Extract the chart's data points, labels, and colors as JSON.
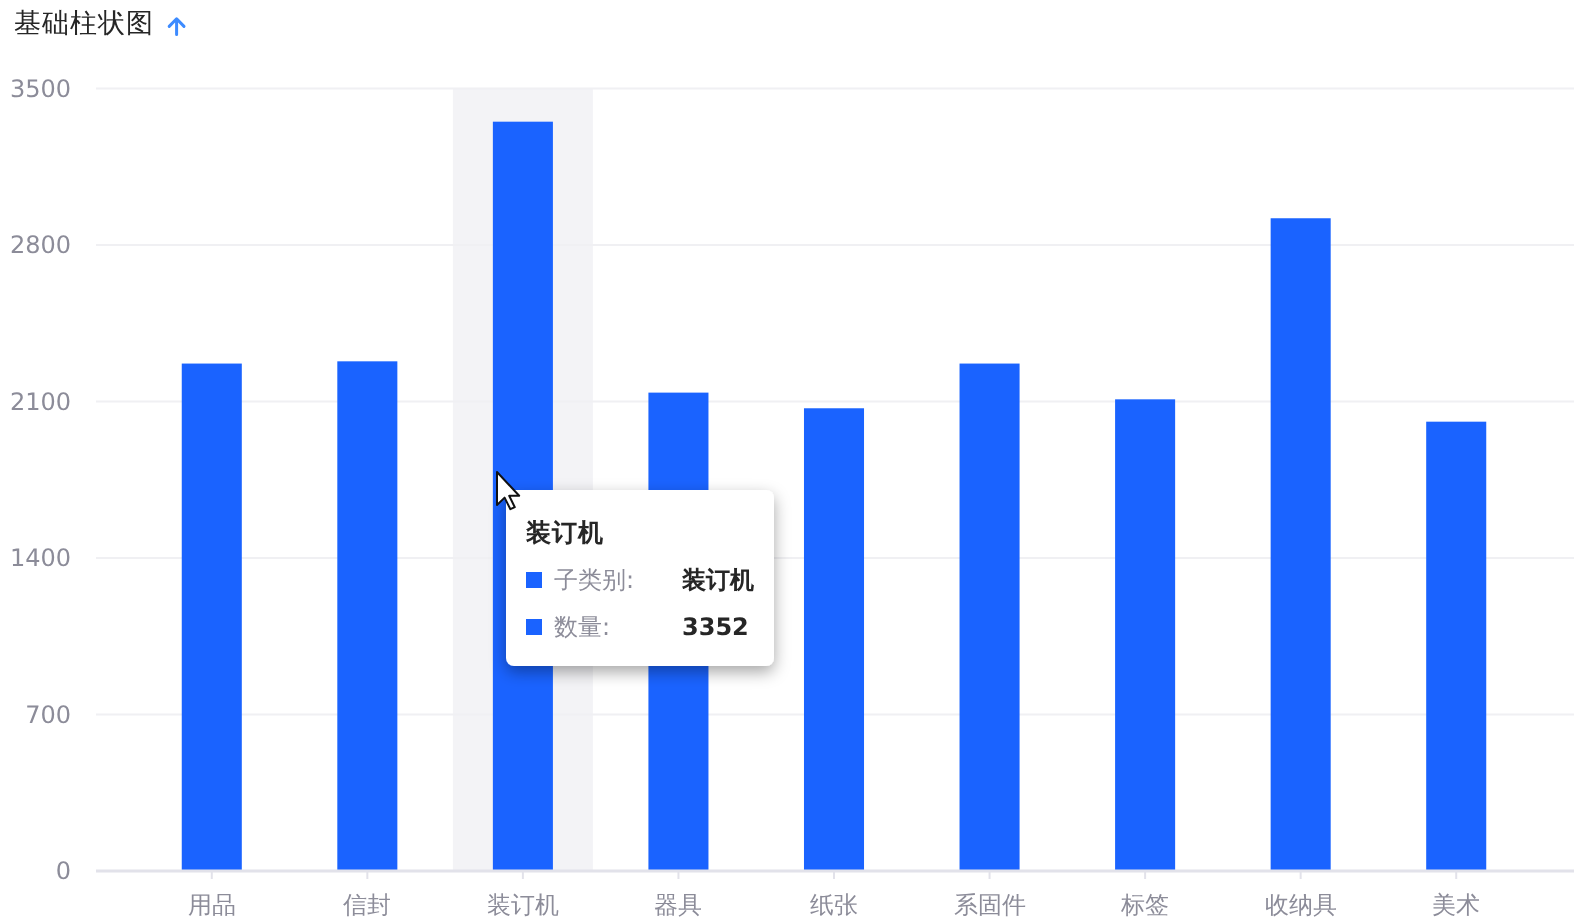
{
  "chart_data": {
    "type": "bar",
    "title": "基础柱状图",
    "categories": [
      "用品",
      "信封",
      "装订机",
      "器具",
      "纸张",
      "系固件",
      "标签",
      "收纳具",
      "美术"
    ],
    "values": [
      2270,
      2280,
      3352,
      2140,
      2070,
      2270,
      2110,
      2920,
      2010
    ],
    "color": "#1a63ff",
    "ylim": [
      0,
      3500
    ],
    "yticks": [
      0,
      700,
      1400,
      2100,
      2800,
      3500
    ],
    "grid": "y",
    "bands": [
      {
        "axis": "x",
        "from": "装订机",
        "to": "装订机",
        "color": "#f3f3f6"
      }
    ],
    "annotations": [
      "装订机",
      "子类别:",
      "装订机",
      "数量:",
      "3352"
    ]
  }
}
